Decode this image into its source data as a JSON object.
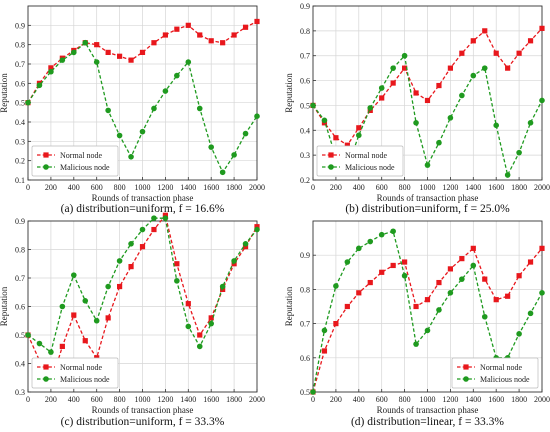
{
  "legend_labels": [
    "Normal node",
    "Malicious node"
  ],
  "colors": {
    "normal": "#e8171c",
    "malicious": "#1f9a1f",
    "grid": "#d6d6d6"
  },
  "chart_data": [
    {
      "type": "line",
      "caption": "(a) distribution=uniform, f = 16.6%",
      "xlabel": "Rounds of transaction phase",
      "ylabel": "Reputation",
      "xlim": [
        0,
        2000
      ],
      "ylim": [
        0.1,
        1.0
      ],
      "xticks": [
        0,
        200,
        400,
        600,
        800,
        1000,
        1200,
        1400,
        1600,
        1800,
        2000
      ],
      "yticks": [
        0.1,
        0.2,
        0.3,
        0.4,
        0.5,
        0.6,
        0.7,
        0.8,
        0.9
      ],
      "grid": true,
      "legend_position": "bottom-left",
      "x": [
        0,
        100,
        200,
        300,
        400,
        500,
        600,
        700,
        800,
        900,
        1000,
        1100,
        1200,
        1300,
        1400,
        1500,
        1600,
        1700,
        1800,
        1900,
        2000
      ],
      "series": [
        {
          "name": "Normal node",
          "values": [
            0.5,
            0.6,
            0.68,
            0.73,
            0.77,
            0.81,
            0.8,
            0.76,
            0.74,
            0.72,
            0.76,
            0.81,
            0.85,
            0.88,
            0.9,
            0.85,
            0.82,
            0.81,
            0.85,
            0.89,
            0.92
          ]
        },
        {
          "name": "Malicious node",
          "values": [
            0.5,
            0.59,
            0.66,
            0.72,
            0.76,
            0.81,
            0.71,
            0.46,
            0.33,
            0.22,
            0.35,
            0.47,
            0.56,
            0.64,
            0.71,
            0.47,
            0.27,
            0.14,
            0.23,
            0.34,
            0.43
          ]
        }
      ]
    },
    {
      "type": "line",
      "caption": "(b) distribution=uniform, f = 25.0%",
      "xlabel": "Rounds of transaction phase",
      "ylabel": "Reputation",
      "xlim": [
        0,
        2000
      ],
      "ylim": [
        0.2,
        0.9
      ],
      "xticks": [
        0,
        200,
        400,
        600,
        800,
        1000,
        1200,
        1400,
        1600,
        1800,
        2000
      ],
      "yticks": [
        0.2,
        0.3,
        0.4,
        0.5,
        0.6,
        0.7,
        0.8,
        0.9
      ],
      "grid": true,
      "legend_position": "bottom-left",
      "x": [
        0,
        100,
        200,
        300,
        400,
        500,
        600,
        700,
        800,
        900,
        1000,
        1100,
        1200,
        1300,
        1400,
        1500,
        1600,
        1700,
        1800,
        1900,
        2000
      ],
      "series": [
        {
          "name": "Normal node",
          "values": [
            0.5,
            0.43,
            0.37,
            0.34,
            0.41,
            0.48,
            0.53,
            0.59,
            0.65,
            0.55,
            0.52,
            0.58,
            0.65,
            0.71,
            0.76,
            0.8,
            0.71,
            0.65,
            0.71,
            0.76,
            0.81
          ]
        },
        {
          "name": "Malicious node",
          "values": [
            0.5,
            0.44,
            0.29,
            0.25,
            0.38,
            0.49,
            0.57,
            0.65,
            0.7,
            0.43,
            0.26,
            0.35,
            0.45,
            0.54,
            0.62,
            0.65,
            0.42,
            0.22,
            0.31,
            0.43,
            0.52
          ]
        }
      ]
    },
    {
      "type": "line",
      "caption": "(c) distribution=uniform, f = 33.3%",
      "xlabel": "Rounds of transaction phase",
      "ylabel": "Reputation",
      "xlim": [
        0,
        2000
      ],
      "ylim": [
        0.3,
        0.9
      ],
      "xticks": [
        0,
        200,
        400,
        600,
        800,
        1000,
        1200,
        1400,
        1600,
        1800,
        2000
      ],
      "yticks": [
        0.3,
        0.4,
        0.5,
        0.6,
        0.7,
        0.8,
        0.9
      ],
      "grid": true,
      "legend_position": "bottom-left",
      "x": [
        0,
        100,
        200,
        300,
        400,
        500,
        600,
        700,
        800,
        900,
        1000,
        1100,
        1200,
        1300,
        1400,
        1500,
        1600,
        1700,
        1800,
        1900,
        2000
      ],
      "series": [
        {
          "name": "Normal node",
          "values": [
            0.5,
            0.41,
            0.33,
            0.46,
            0.57,
            0.48,
            0.42,
            0.56,
            0.67,
            0.74,
            0.81,
            0.87,
            0.92,
            0.75,
            0.61,
            0.5,
            0.56,
            0.66,
            0.75,
            0.81,
            0.88
          ]
        },
        {
          "name": "Malicious node",
          "values": [
            0.5,
            0.47,
            0.44,
            0.6,
            0.71,
            0.62,
            0.55,
            0.67,
            0.76,
            0.82,
            0.87,
            0.91,
            0.91,
            0.69,
            0.53,
            0.46,
            0.54,
            0.67,
            0.76,
            0.82,
            0.87
          ]
        }
      ]
    },
    {
      "type": "line",
      "caption": "(d) distribution=linear, f = 33.3%",
      "xlabel": "Rounds of transaction phase",
      "ylabel": "Reputation",
      "xlim": [
        0,
        2000
      ],
      "ylim": [
        0.5,
        1.0
      ],
      "xticks": [
        0,
        200,
        400,
        600,
        800,
        1000,
        1200,
        1400,
        1600,
        1800,
        2000
      ],
      "yticks": [
        0.5,
        0.6,
        0.7,
        0.8,
        0.9
      ],
      "grid": true,
      "legend_position": "bottom-right",
      "x": [
        0,
        100,
        200,
        300,
        400,
        500,
        600,
        700,
        800,
        900,
        1000,
        1100,
        1200,
        1300,
        1400,
        1500,
        1600,
        1700,
        1800,
        1900,
        2000
      ],
      "series": [
        {
          "name": "Normal node",
          "values": [
            0.5,
            0.62,
            0.7,
            0.75,
            0.79,
            0.82,
            0.85,
            0.87,
            0.88,
            0.75,
            0.77,
            0.82,
            0.86,
            0.89,
            0.92,
            0.83,
            0.77,
            0.78,
            0.84,
            0.88,
            0.92
          ]
        },
        {
          "name": "Malicious node",
          "values": [
            0.5,
            0.68,
            0.81,
            0.88,
            0.92,
            0.94,
            0.96,
            0.97,
            0.84,
            0.64,
            0.68,
            0.74,
            0.79,
            0.83,
            0.87,
            0.72,
            0.6,
            0.6,
            0.67,
            0.73,
            0.79
          ]
        }
      ]
    }
  ]
}
